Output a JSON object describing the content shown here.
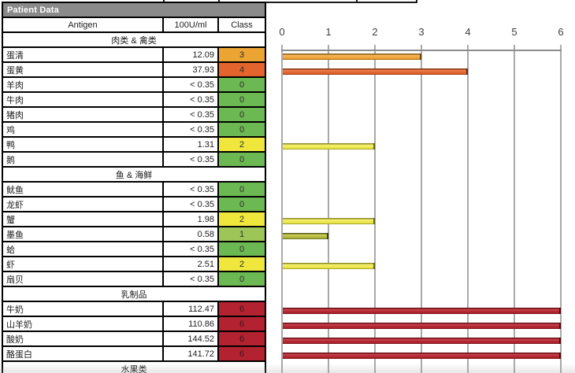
{
  "table": {
    "title": "Patient Data",
    "columns": [
      "Antigen",
      "100U/ml",
      "Class"
    ],
    "sections": [
      {
        "header": "肉类 & 禽类",
        "rows": [
          {
            "antigen": "蛋清",
            "value": "12.09",
            "class": 3
          },
          {
            "antigen": "蛋黄",
            "value": "37.93",
            "class": 4
          },
          {
            "antigen": "羊肉",
            "value": "< 0.35",
            "class": 0
          },
          {
            "antigen": "牛肉",
            "value": "< 0.35",
            "class": 0
          },
          {
            "antigen": "猪肉",
            "value": "< 0.35",
            "class": 0
          },
          {
            "antigen": "鸡",
            "value": "< 0.35",
            "class": 0
          },
          {
            "antigen": "鸭",
            "value": "1.31",
            "class": 2
          },
          {
            "antigen": "鹅",
            "value": "< 0.35",
            "class": 0
          }
        ]
      },
      {
        "header": "鱼 & 海鲜",
        "rows": [
          {
            "antigen": "鱿鱼",
            "value": "< 0.35",
            "class": 0
          },
          {
            "antigen": "龙虾",
            "value": "< 0.35",
            "class": 0
          },
          {
            "antigen": "蟹",
            "value": "1.98",
            "class": 2
          },
          {
            "antigen": "墨鱼",
            "value": "0.58",
            "class": 1
          },
          {
            "antigen": "蛤",
            "value": "< 0.35",
            "class": 0
          },
          {
            "antigen": "虾",
            "value": "2.51",
            "class": 2
          },
          {
            "antigen": "扇贝",
            "value": "< 0.35",
            "class": 0
          }
        ]
      },
      {
        "header": "乳制品",
        "rows": [
          {
            "antigen": "牛奶",
            "value": "112.47",
            "class": 6
          },
          {
            "antigen": "山羊奶",
            "value": "110.86",
            "class": 6
          },
          {
            "antigen": "酸奶",
            "value": "144.52",
            "class": 6
          },
          {
            "antigen": "酪蛋白",
            "value": "141.72",
            "class": 6
          }
        ]
      },
      {
        "header": "水果类",
        "rows": []
      }
    ],
    "class_colors": {
      "0": "#6cb852",
      "1": "#9dc558",
      "2": "#efe73c",
      "3": "#eca433",
      "4": "#e4642d",
      "6": "#b22230"
    },
    "class_text_colors": {
      "0": "#2e2e2e",
      "1": "#2e2e2e",
      "2": "#2e2e2e",
      "3": "#2e2e2e",
      "4": "#2e2e2e",
      "6": "#43161b"
    },
    "header_bg": "#8a8a8a"
  },
  "chart_data": {
    "type": "bar",
    "orientation": "horizontal",
    "title": "",
    "xlabel": "",
    "ylabel": "",
    "axis_position": "top",
    "grid": true,
    "xlim": [
      0,
      6
    ],
    "ticks": [
      "0",
      "1",
      "2",
      "3",
      "4",
      "5",
      "6"
    ],
    "categories": [
      "蛋清",
      "蛋黄",
      "羊肉",
      "牛肉",
      "猪肉",
      "鸡",
      "鸭",
      "鹅",
      "鱿鱼",
      "龙虾",
      "蟹",
      "墨鱼",
      "蛤",
      "虾",
      "扇贝",
      "牛奶",
      "山羊奶",
      "酸奶",
      "酪蛋白"
    ],
    "values": [
      3,
      4,
      0,
      0,
      0,
      0,
      2,
      0,
      0,
      0,
      2,
      1,
      0,
      2,
      0,
      6,
      6,
      6,
      6
    ],
    "bar_styles": {
      "1": {
        "light": "#cdd257",
        "fill": "#b3b840",
        "dark": "#5a5c1a",
        "edge": "#3f4012"
      },
      "2": {
        "light": "#f6f277",
        "fill": "#ece74b",
        "dark": "#8e8d22",
        "edge": "#66651a"
      },
      "3": {
        "light": "#f7bd63",
        "fill": "#efa43c",
        "dark": "#8f5c14",
        "edge": "#6e4710"
      },
      "4": {
        "light": "#f08354",
        "fill": "#e2632c",
        "dark": "#8a3412",
        "edge": "#5f250d"
      },
      "6": {
        "light": "#c94750",
        "fill": "#b2252e",
        "dark": "#6d0f15",
        "edge": "#45090d"
      }
    },
    "grid_color": "#a9a9a9",
    "axis_color": "#8c8c8c"
  }
}
